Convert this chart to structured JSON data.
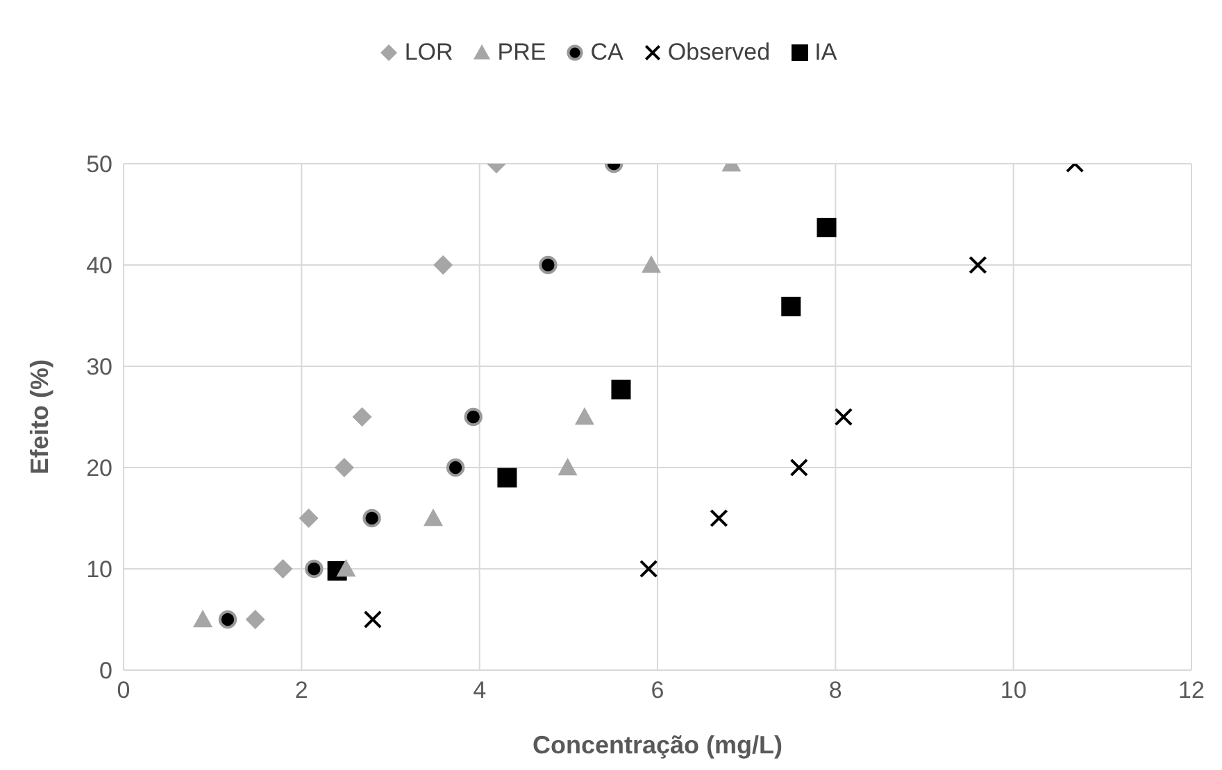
{
  "chart_data": {
    "type": "scatter",
    "xlabel": "Concentração (mg/L)",
    "ylabel": "Efeito (%)",
    "xlim": [
      0,
      12
    ],
    "xticks": [
      0,
      2,
      4,
      6,
      8,
      10,
      12
    ],
    "ylim": [
      0,
      50
    ],
    "yticks": [
      0,
      10,
      20,
      30,
      40,
      50
    ],
    "grid": true,
    "legend": "top",
    "series": [
      {
        "name": "LOR",
        "color": "#a6a6a6",
        "marker": "diamond",
        "x": [
          1.48,
          1.79,
          2.08,
          2.48,
          2.68,
          3.59,
          4.19
        ],
        "values": [
          5,
          10,
          15,
          20,
          25,
          40,
          50
        ]
      },
      {
        "name": "PRE",
        "color": "#a6a6a6",
        "marker": "triangle",
        "x": [
          0.89,
          2.5,
          3.48,
          4.99,
          5.18,
          5.93,
          6.83
        ],
        "values": [
          5,
          10,
          15,
          20,
          25,
          40,
          50
        ]
      },
      {
        "name": "CA",
        "color": "#000000",
        "marker": "circle",
        "x": [
          1.17,
          2.14,
          2.79,
          3.73,
          3.93,
          4.77,
          5.51
        ],
        "values": [
          5,
          10,
          15,
          20,
          25,
          40,
          50
        ]
      },
      {
        "name": "Observed",
        "color": "#000000",
        "marker": "cross",
        "x": [
          2.8,
          5.9,
          6.69,
          7.59,
          8.09,
          9.6,
          10.69
        ],
        "values": [
          5,
          10,
          15,
          20,
          25,
          40,
          50
        ]
      },
      {
        "name": "IA",
        "color": "#000000",
        "marker": "square",
        "x": [
          2.4,
          4.31,
          5.59,
          7.5,
          7.9
        ],
        "values": [
          9.8,
          19.0,
          27.7,
          35.9,
          43.7
        ]
      }
    ]
  }
}
